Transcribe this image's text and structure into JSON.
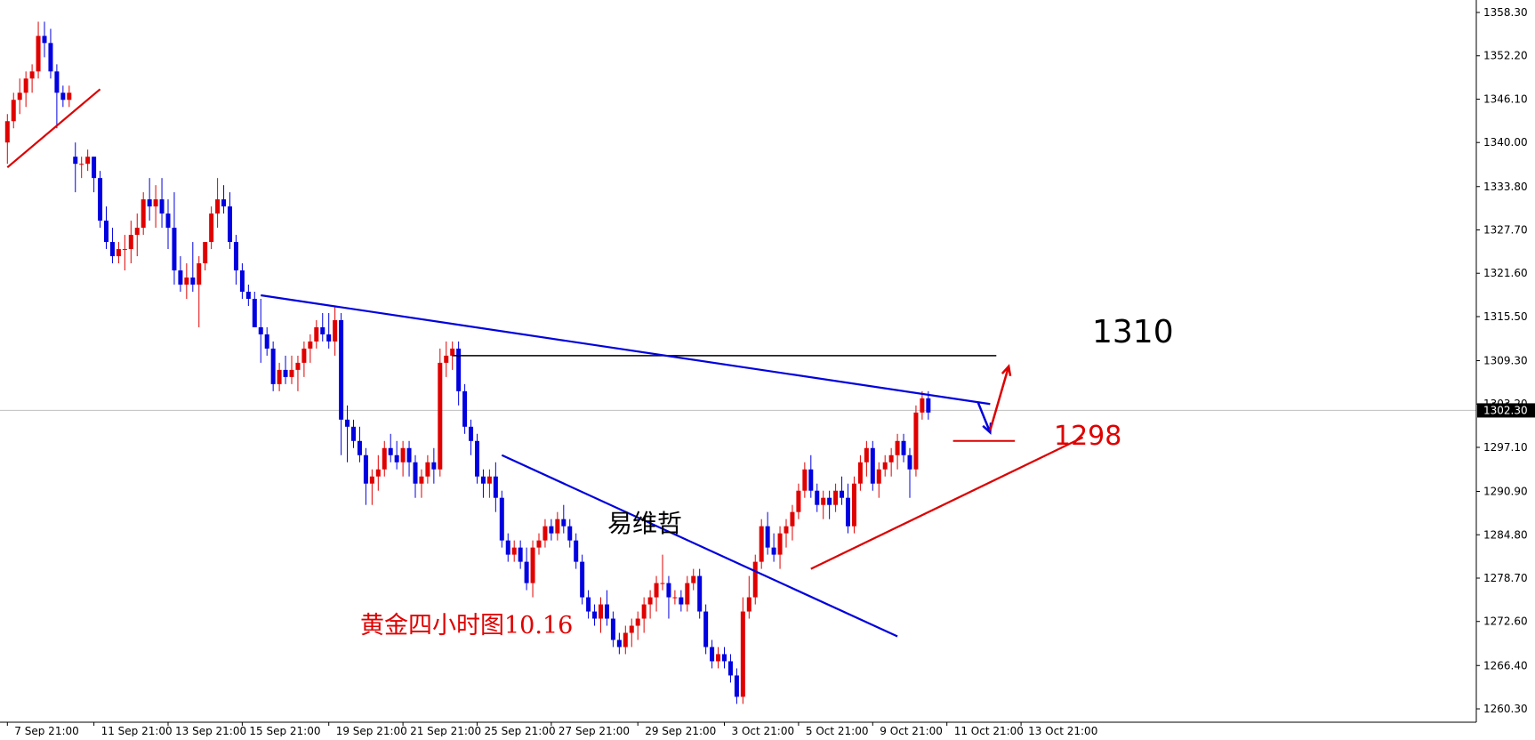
{
  "chart_data": {
    "type": "candlestick",
    "instrument": "Gold",
    "timeframe": "H4",
    "colors": {
      "bull": "#e00000",
      "bear": "#0000e0",
      "trendline_blue": "#0000dd",
      "trendline_red": "#dd0000",
      "level_line": "#000000",
      "current_price_line": "#c0c0c0",
      "current_price_label_bg": "#000000",
      "background": "#ffffff",
      "axis": "#000000"
    },
    "y_axis": {
      "side": "right",
      "range": [
        1258.0,
        1360.0
      ],
      "tick_labels": [
        "1358.30",
        "1352.20",
        "1346.10",
        "1340.00",
        "1333.80",
        "1327.70",
        "1321.60",
        "1315.50",
        "1309.30",
        "1303.20",
        "1297.10",
        "1290.90",
        "1284.80",
        "1278.70",
        "1272.60",
        "1266.40",
        "1260.30"
      ]
    },
    "x_axis": {
      "tick_labels": [
        "7 Sep 21:00",
        "11 Sep 21:00",
        "13 Sep 21:00",
        "15 Sep 21:00",
        "19 Sep 21:00",
        "21 Sep 21:00",
        "25 Sep 21:00",
        "27 Sep 21:00",
        "29 Sep 21:00",
        "3 Oct 21:00",
        "5 Oct 21:00",
        "9 Oct 21:00",
        "11 Oct 21:00",
        "13 Oct 21:00"
      ],
      "tick_positions": [
        0,
        14,
        26,
        38,
        52,
        64,
        76,
        88,
        102,
        116,
        128,
        140,
        152,
        164
      ]
    },
    "current_price": "1302.30",
    "candles": [
      [
        1340,
        1344,
        1337,
        1343
      ],
      [
        1343,
        1347,
        1342,
        1346
      ],
      [
        1346,
        1349,
        1344,
        1347
      ],
      [
        1347,
        1350,
        1345,
        1349
      ],
      [
        1349,
        1351,
        1347,
        1350
      ],
      [
        1350,
        1357,
        1349,
        1355
      ],
      [
        1355,
        1357,
        1352,
        1354
      ],
      [
        1354,
        1356,
        1349,
        1350
      ],
      [
        1350,
        1351,
        1342,
        1347
      ],
      [
        1347,
        1348,
        1345,
        1346
      ],
      [
        1346,
        1348,
        1345,
        1347
      ],
      [
        1338,
        1340,
        1333,
        1337
      ],
      [
        1337,
        1338,
        1335,
        1337
      ],
      [
        1337,
        1339,
        1336,
        1338
      ],
      [
        1338,
        1338,
        1333,
        1335
      ],
      [
        1335,
        1336,
        1328,
        1329
      ],
      [
        1329,
        1331,
        1325,
        1326
      ],
      [
        1326,
        1328,
        1323,
        1324
      ],
      [
        1324,
        1326,
        1323,
        1325
      ],
      [
        1325,
        1327,
        1322,
        1325
      ],
      [
        1325,
        1329,
        1323,
        1327
      ],
      [
        1327,
        1330,
        1324,
        1328
      ],
      [
        1328,
        1333,
        1327,
        1332
      ],
      [
        1332,
        1335,
        1329,
        1331
      ],
      [
        1331,
        1334,
        1328,
        1332
      ],
      [
        1332,
        1335,
        1328,
        1330
      ],
      [
        1330,
        1332,
        1325,
        1328
      ],
      [
        1328,
        1333,
        1320,
        1322
      ],
      [
        1322,
        1324,
        1319,
        1320
      ],
      [
        1320,
        1323,
        1318,
        1321
      ],
      [
        1321,
        1326,
        1319,
        1320
      ],
      [
        1320,
        1324,
        1314,
        1323
      ],
      [
        1323,
        1326,
        1322,
        1326
      ],
      [
        1326,
        1331,
        1325,
        1330
      ],
      [
        1330,
        1335,
        1328,
        1332
      ],
      [
        1332,
        1334,
        1330,
        1331
      ],
      [
        1331,
        1333,
        1325,
        1326
      ],
      [
        1326,
        1327,
        1320,
        1322
      ],
      [
        1322,
        1323,
        1318,
        1319
      ],
      [
        1319,
        1320,
        1317,
        1318
      ],
      [
        1318,
        1319,
        1314,
        1314
      ],
      [
        1314,
        1318,
        1309,
        1313
      ],
      [
        1313,
        1314,
        1310,
        1311
      ],
      [
        1311,
        1312,
        1305,
        1306
      ],
      [
        1306,
        1309,
        1305,
        1308
      ],
      [
        1308,
        1310,
        1306,
        1307
      ],
      [
        1307,
        1310,
        1306,
        1308
      ],
      [
        1308,
        1310,
        1305,
        1309
      ],
      [
        1309,
        1312,
        1307,
        1311
      ],
      [
        1311,
        1313,
        1309,
        1312
      ],
      [
        1312,
        1315,
        1311,
        1314
      ],
      [
        1314,
        1316,
        1312,
        1313
      ],
      [
        1313,
        1316,
        1311,
        1312
      ],
      [
        1312,
        1317,
        1310,
        1315
      ],
      [
        1315,
        1316,
        1296,
        1301
      ],
      [
        1301,
        1303,
        1295,
        1300
      ],
      [
        1300,
        1301,
        1297,
        1298
      ],
      [
        1298,
        1300,
        1295,
        1296
      ],
      [
        1296,
        1297,
        1289,
        1292
      ],
      [
        1292,
        1294,
        1289,
        1293
      ],
      [
        1293,
        1296,
        1291,
        1294
      ],
      [
        1294,
        1298,
        1293,
        1297
      ],
      [
        1297,
        1299,
        1295,
        1296
      ],
      [
        1296,
        1298,
        1294,
        1295
      ],
      [
        1295,
        1298,
        1293,
        1297
      ],
      [
        1297,
        1298,
        1293,
        1295
      ],
      [
        1295,
        1296,
        1290,
        1292
      ],
      [
        1292,
        1294,
        1290,
        1293
      ],
      [
        1293,
        1296,
        1292,
        1295
      ],
      [
        1295,
        1297,
        1292,
        1294
      ],
      [
        1294,
        1311,
        1293,
        1309
      ],
      [
        1309,
        1312,
        1307,
        1310
      ],
      [
        1310,
        1312,
        1308,
        1311
      ],
      [
        1311,
        1312,
        1303,
        1305
      ],
      [
        1305,
        1306,
        1299,
        1300
      ],
      [
        1300,
        1301,
        1296,
        1298
      ],
      [
        1298,
        1299,
        1292,
        1293
      ],
      [
        1293,
        1294,
        1290,
        1292
      ],
      [
        1292,
        1294,
        1290,
        1293
      ],
      [
        1293,
        1295,
        1288,
        1290
      ],
      [
        1290,
        1291,
        1283,
        1284
      ],
      [
        1284,
        1285,
        1281,
        1282
      ],
      [
        1282,
        1284,
        1281,
        1283
      ],
      [
        1283,
        1284,
        1280,
        1281
      ],
      [
        1281,
        1283,
        1277,
        1278
      ],
      [
        1278,
        1284,
        1276,
        1283
      ],
      [
        1283,
        1285,
        1282,
        1284
      ],
      [
        1284,
        1287,
        1283,
        1286
      ],
      [
        1286,
        1287,
        1284,
        1285
      ],
      [
        1285,
        1288,
        1284,
        1287
      ],
      [
        1287,
        1289,
        1285,
        1286
      ],
      [
        1286,
        1287,
        1283,
        1284
      ],
      [
        1284,
        1285,
        1280,
        1281
      ],
      [
        1281,
        1282,
        1275,
        1276
      ],
      [
        1276,
        1277,
        1273,
        1274
      ],
      [
        1274,
        1275,
        1272,
        1273
      ],
      [
        1273,
        1276,
        1271,
        1275
      ],
      [
        1275,
        1277,
        1272,
        1273
      ],
      [
        1273,
        1274,
        1269,
        1270
      ],
      [
        1270,
        1271,
        1268,
        1269
      ],
      [
        1269,
        1272,
        1268,
        1271
      ],
      [
        1271,
        1273,
        1269,
        1272
      ],
      [
        1272,
        1274,
        1270,
        1273
      ],
      [
        1273,
        1276,
        1271,
        1275
      ],
      [
        1275,
        1277,
        1273,
        1276
      ],
      [
        1276,
        1279,
        1274,
        1278
      ],
      [
        1278,
        1282,
        1277,
        1278
      ],
      [
        1278,
        1279,
        1273,
        1276
      ],
      [
        1276,
        1277,
        1275,
        1276
      ],
      [
        1276,
        1277,
        1274,
        1275
      ],
      [
        1275,
        1279,
        1274,
        1278
      ],
      [
        1278,
        1280,
        1277,
        1279
      ],
      [
        1279,
        1280,
        1273,
        1274
      ],
      [
        1274,
        1275,
        1268,
        1269
      ],
      [
        1269,
        1270,
        1266,
        1267
      ],
      [
        1267,
        1269,
        1266,
        1268
      ],
      [
        1268,
        1269,
        1266,
        1267
      ],
      [
        1267,
        1268,
        1264,
        1265
      ],
      [
        1265,
        1266,
        1261,
        1262
      ],
      [
        1262,
        1276,
        1261,
        1274
      ],
      [
        1274,
        1279,
        1273,
        1276
      ],
      [
        1276,
        1282,
        1275,
        1281
      ],
      [
        1281,
        1287,
        1280,
        1286
      ],
      [
        1286,
        1288,
        1282,
        1283
      ],
      [
        1283,
        1285,
        1281,
        1282
      ],
      [
        1282,
        1286,
        1280,
        1285
      ],
      [
        1285,
        1287,
        1283,
        1286
      ],
      [
        1286,
        1289,
        1284,
        1288
      ],
      [
        1288,
        1292,
        1287,
        1291
      ],
      [
        1291,
        1295,
        1290,
        1294
      ],
      [
        1294,
        1296,
        1290,
        1291
      ],
      [
        1291,
        1292,
        1288,
        1289
      ],
      [
        1289,
        1291,
        1287,
        1290
      ],
      [
        1290,
        1291,
        1287,
        1289
      ],
      [
        1289,
        1292,
        1288,
        1291
      ],
      [
        1291,
        1293,
        1289,
        1290
      ],
      [
        1290,
        1292,
        1285,
        1286
      ],
      [
        1286,
        1293,
        1285,
        1292
      ],
      [
        1292,
        1296,
        1291,
        1295
      ],
      [
        1295,
        1298,
        1293,
        1297
      ],
      [
        1297,
        1298,
        1291,
        1292
      ],
      [
        1292,
        1295,
        1290,
        1294
      ],
      [
        1294,
        1296,
        1293,
        1295
      ],
      [
        1295,
        1297,
        1293,
        1296
      ],
      [
        1296,
        1299,
        1294,
        1298
      ],
      [
        1298,
        1299,
        1295,
        1296
      ],
      [
        1296,
        1297,
        1290,
        1294
      ],
      [
        1294,
        1303,
        1293,
        1302
      ],
      [
        1302,
        1305,
        1301,
        1304
      ],
      [
        1304,
        1305,
        1301,
        1302
      ]
    ],
    "annotations": {
      "resistance_label": "1310",
      "support_label": "1298",
      "watermark": "易维哲",
      "caption": "黄金四小时图10.16"
    },
    "trendlines": [
      {
        "color": "blue",
        "from": {
          "bar": 41,
          "price": 1318.5
        },
        "to": {
          "bar": 159,
          "price": 1303.2
        }
      },
      {
        "color": "blue",
        "from": {
          "bar": 80,
          "price": 1296.0
        },
        "to": {
          "bar": 144,
          "price": 1270.5
        }
      },
      {
        "color": "red",
        "from": {
          "bar": 0,
          "price": 1336.5
        },
        "to": {
          "bar": 15,
          "price": 1347.5
        }
      },
      {
        "color": "red",
        "from": {
          "bar": 130,
          "price": 1280.0
        },
        "to": {
          "bar": 174,
          "price": 1298.5
        }
      }
    ],
    "levels": [
      {
        "price": 1310,
        "from_bar": 72,
        "to_bar": 160,
        "color": "black"
      },
      {
        "price": 1298,
        "from_bar": 153,
        "to_bar": 163,
        "color": "red"
      }
    ],
    "projection_arrows": [
      {
        "color": "blue",
        "from": {
          "bar": 157,
          "price": 1303.5
        },
        "to": {
          "bar": 159,
          "price": 1299.2
        }
      },
      {
        "color": "red",
        "from": {
          "bar": 159,
          "price": 1299.5
        },
        "to": {
          "bar": 162,
          "price": 1308.5
        }
      }
    ]
  }
}
